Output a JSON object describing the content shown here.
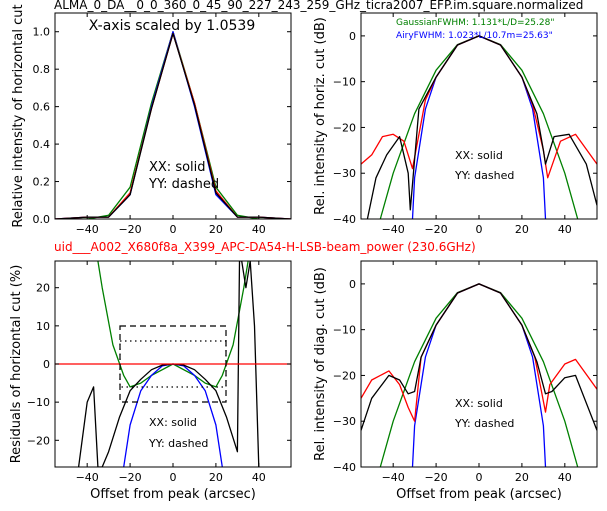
{
  "figure": {
    "top_title": "ALMA_0_DA__0_0_360_0_45_90_227_243_259_GHz_ticra2007_EFP.im.square.normalized",
    "mid_title": "uid___A002_X680f8a_X399_APC-DA54-H-LSB-beam_power (230.6GHz)",
    "mid_title_color": "#ff0000"
  },
  "chart_data": [
    {
      "id": "top_left",
      "type": "line",
      "xlabel": "",
      "ylabel": "Relative intensity of horizontal cut",
      "xlim": [
        -55,
        55
      ],
      "ylim": [
        0,
        1.1
      ],
      "xticks": [
        -40,
        -20,
        0,
        20,
        40
      ],
      "yticks": [
        0.0,
        0.2,
        0.4,
        0.6,
        0.8,
        1.0
      ],
      "ytick_labels": [
        "0.0",
        "0.2",
        "0.4",
        "0.6",
        "0.8",
        "1.0"
      ],
      "annotations": [
        "X-axis scaled by 1.0539",
        "XX: solid",
        "YY: dashed"
      ],
      "series": [
        {
          "color": "#008000",
          "x": [
            -55,
            -40,
            -30,
            -20,
            -10,
            0,
            10,
            20,
            30,
            40,
            55
          ],
          "y": [
            0,
            0,
            0.02,
            0.17,
            0.62,
            1.0,
            0.62,
            0.17,
            0.02,
            0,
            0
          ]
        },
        {
          "color": "#0000ff",
          "x": [
            -55,
            -40,
            -30,
            -20,
            -10,
            0,
            10,
            20,
            30,
            40,
            55
          ],
          "y": [
            0,
            0.01,
            0.01,
            0.13,
            0.6,
            1.0,
            0.6,
            0.13,
            0.01,
            0.01,
            0
          ]
        },
        {
          "color": "#ff0000",
          "x": [
            -55,
            -40,
            -30,
            -20,
            -10,
            0,
            10,
            20,
            30,
            40,
            55
          ],
          "y": [
            0,
            0.01,
            0.01,
            0.14,
            0.59,
            0.99,
            0.62,
            0.15,
            0.01,
            0.01,
            0
          ]
        },
        {
          "color": "#000000",
          "x": [
            -55,
            -40,
            -30,
            -20,
            -10,
            0,
            10,
            20,
            30,
            40,
            55
          ],
          "y": [
            0,
            0.01,
            0.01,
            0.13,
            0.59,
            0.99,
            0.61,
            0.14,
            0.01,
            0.01,
            0
          ]
        }
      ]
    },
    {
      "id": "top_right",
      "type": "line",
      "xlabel": "",
      "ylabel": "Rel. intensity of horiz. cut (dB)",
      "xlim": [
        -55,
        55
      ],
      "ylim": [
        -40,
        5
      ],
      "xticks": [
        -40,
        -20,
        0,
        20,
        40
      ],
      "yticks": [
        0,
        -10,
        -20,
        -30,
        -40
      ],
      "annotations": [
        {
          "text": "GaussianFWHM: 1.131*L/D=25.28\"",
          "color": "#008000"
        },
        {
          "text": "AiryFWHM: 1.023*L/10.7m=25.63\"",
          "color": "#0000ff"
        },
        {
          "text": "XX: solid",
          "color": "#000000"
        },
        {
          "text": "YY: dashed",
          "color": "#000000"
        }
      ],
      "series": [
        {
          "color": "#008000",
          "x": [
            -46,
            -40,
            -30,
            -20,
            -10,
            0,
            10,
            20,
            30,
            40,
            46
          ],
          "y": [
            -40,
            -30,
            -17,
            -7.5,
            -1.9,
            0,
            -1.9,
            -7.5,
            -17,
            -30,
            -40
          ]
        },
        {
          "color": "#0000ff",
          "x": [
            -31,
            -30,
            -25,
            -20,
            -10,
            0,
            10,
            20,
            25,
            30,
            31
          ],
          "y": [
            -40,
            -31,
            -16,
            -9,
            -2,
            0,
            -2,
            -9,
            -16,
            -31,
            -40
          ]
        },
        {
          "color": "#ff0000",
          "x": [
            -55,
            -50,
            -45,
            -40,
            -35,
            -31,
            -25,
            -20,
            -10,
            0,
            10,
            20,
            25,
            30,
            32,
            38,
            45,
            55
          ],
          "y": [
            -28,
            -26,
            -22,
            -21.5,
            -23,
            -29,
            -14,
            -9,
            -2,
            0,
            -2,
            -9,
            -15,
            -25,
            -31,
            -23,
            -21.5,
            -28
          ]
        },
        {
          "color": "#000000",
          "x": [
            -52,
            -48,
            -43,
            -37,
            -33,
            -32,
            -28,
            -20,
            -10,
            0,
            10,
            20,
            27,
            30,
            31,
            35,
            42,
            50,
            55
          ],
          "y": [
            -40,
            -31,
            -26,
            -22,
            -30,
            -38,
            -16,
            -9,
            -2,
            0,
            -2,
            -9,
            -17,
            -25,
            -28,
            -22,
            -21.5,
            -28,
            -37
          ]
        }
      ]
    },
    {
      "id": "bottom_left",
      "type": "line",
      "xlabel": "Offset from peak (arcsec)",
      "ylabel": "Residuals of horizontal cut (%)",
      "xlim": [
        -55,
        55
      ],
      "ylim": [
        -27,
        27
      ],
      "xticks": [
        -40,
        -20,
        0,
        20,
        40
      ],
      "yticks": [
        20,
        10,
        0,
        -10,
        -20
      ],
      "annotations": [
        "XX: solid",
        "YY: dashed"
      ],
      "series": [
        {
          "color": "#008000",
          "x": [
            -35,
            -33,
            -28,
            -23,
            -20,
            -15,
            -10,
            0,
            10,
            15,
            20,
            23,
            28,
            33,
            35
          ],
          "y": [
            27,
            20,
            5,
            -3,
            -6,
            -5,
            -3,
            0,
            -3,
            -5,
            -6,
            -3,
            5,
            20,
            27
          ]
        },
        {
          "color": "#0000ff",
          "x": [
            -23,
            -20,
            -15,
            -10,
            -5,
            0,
            5,
            10,
            15,
            20,
            23
          ],
          "y": [
            -27,
            -16,
            -7,
            -3,
            -0.5,
            0,
            -0.5,
            -3,
            -7,
            -16,
            -27
          ]
        },
        {
          "color": "#000000",
          "x": [
            -44,
            -40,
            -37,
            -35,
            -33,
            -30,
            -25,
            -20,
            -15,
            -10,
            -5,
            0,
            5,
            10,
            15,
            20,
            25,
            30,
            31,
            32,
            34,
            36,
            38,
            40
          ],
          "y": [
            -27,
            -10,
            -6,
            -27,
            -27,
            -23,
            -14,
            -7,
            -4,
            -1.5,
            -0.3,
            0,
            -0.3,
            -1.5,
            -4,
            -7,
            -14,
            -23,
            27,
            27,
            20,
            27,
            10,
            -27
          ]
        },
        {
          "color": "#ff0000",
          "x": [
            -55,
            55
          ],
          "y": [
            0,
            0
          ]
        }
      ]
    },
    {
      "id": "bottom_right",
      "type": "line",
      "xlabel": "Offset from peak (arcsec)",
      "ylabel": "Rel. intensity of diag. cut (dB)",
      "xlim": [
        -55,
        55
      ],
      "ylim": [
        -40,
        5
      ],
      "xticks": [
        -40,
        -20,
        0,
        20,
        40
      ],
      "yticks": [
        0,
        -10,
        -20,
        -30,
        -40
      ],
      "annotations": [
        "XX: solid",
        "YY: dashed"
      ],
      "series": [
        {
          "color": "#008000",
          "x": [
            -46,
            -40,
            -30,
            -20,
            -10,
            0,
            10,
            20,
            30,
            40,
            46
          ],
          "y": [
            -40,
            -30,
            -17,
            -7.5,
            -1.9,
            0,
            -1.9,
            -7.5,
            -17,
            -30,
            -40
          ]
        },
        {
          "color": "#0000ff",
          "x": [
            -31,
            -30,
            -25,
            -20,
            -10,
            0,
            10,
            20,
            25,
            30,
            31
          ],
          "y": [
            -40,
            -31,
            -16,
            -9,
            -2,
            0,
            -2,
            -9,
            -16,
            -31,
            -40
          ]
        },
        {
          "color": "#ff0000",
          "x": [
            -55,
            -50,
            -42,
            -37,
            -33,
            -30,
            -27,
            -20,
            -10,
            0,
            10,
            20,
            26,
            31,
            33,
            40,
            45,
            55
          ],
          "y": [
            -25,
            -21,
            -19,
            -22,
            -27,
            -30,
            -16,
            -9,
            -2,
            0,
            -2,
            -9,
            -16,
            -28,
            -22,
            -17.5,
            -16.5,
            -23
          ]
        },
        {
          "color": "#000000",
          "x": [
            -55,
            -50,
            -42,
            -37,
            -33,
            -30,
            -27,
            -20,
            -10,
            0,
            10,
            20,
            27,
            31,
            34,
            40,
            45,
            55
          ],
          "y": [
            -32,
            -25,
            -20,
            -21,
            -24,
            -23.5,
            -16,
            -9,
            -2,
            0,
            -2,
            -9,
            -17,
            -24,
            -23.5,
            -20.5,
            -20,
            -32
          ]
        }
      ]
    }
  ]
}
